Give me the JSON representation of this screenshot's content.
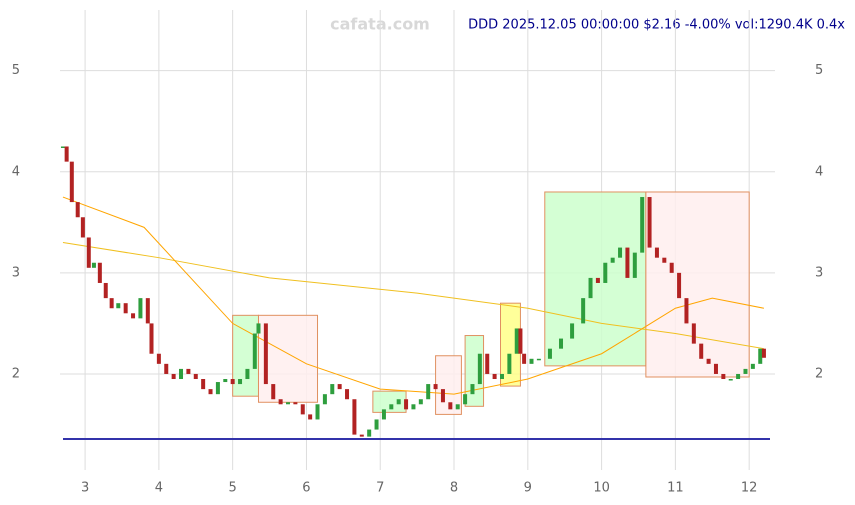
{
  "chart_data": {
    "type": "candlestick",
    "title": "DDD 2025.12.05 00:00:00 $2.16 -4.00% vol:1290.4K 0.4x",
    "watermark": "cafata.com",
    "xlim": [
      2.66,
      12.35
    ],
    "ylim": [
      1.05,
      5.6
    ],
    "xticks": [
      3,
      4,
      5,
      6,
      7,
      8,
      9,
      10,
      11,
      12
    ],
    "yticks": [
      2,
      3,
      4,
      5
    ],
    "grid": true,
    "up_color": "#2e9e3e",
    "down_color": "#b22222",
    "x": [
      2.7,
      2.75,
      2.82,
      2.9,
      2.97,
      3.05,
      3.12,
      3.2,
      3.28,
      3.36,
      3.45,
      3.55,
      3.65,
      3.75,
      3.85,
      3.9,
      4.0,
      4.1,
      4.2,
      4.3,
      4.4,
      4.5,
      4.6,
      4.7,
      4.8,
      4.9,
      5.0,
      5.1,
      5.2,
      5.3,
      5.35,
      5.45,
      5.55,
      5.65,
      5.75,
      5.85,
      5.95,
      6.05,
      6.15,
      6.25,
      6.35,
      6.45,
      6.55,
      6.65,
      6.75,
      6.85,
      6.95,
      7.05,
      7.15,
      7.25,
      7.35,
      7.45,
      7.55,
      7.65,
      7.75,
      7.85,
      7.95,
      8.05,
      8.15,
      8.25,
      8.35,
      8.45,
      8.55,
      8.65,
      8.75,
      8.85,
      8.9,
      8.95,
      9.05,
      9.15,
      9.3,
      9.45,
      9.6,
      9.75,
      9.85,
      9.95,
      10.05,
      10.15,
      10.25,
      10.35,
      10.45,
      10.55,
      10.65,
      10.75,
      10.85,
      10.95,
      11.05,
      11.15,
      11.25,
      11.35,
      11.45,
      11.55,
      11.65,
      11.75,
      11.85,
      11.95,
      12.05,
      12.15,
      12.2
    ],
    "values": [
      4.25,
      4.1,
      3.7,
      3.55,
      3.35,
      3.05,
      3.1,
      2.9,
      2.75,
      2.65,
      2.7,
      2.6,
      2.55,
      2.75,
      2.5,
      2.2,
      2.1,
      2.0,
      1.95,
      2.05,
      2.0,
      1.95,
      1.85,
      1.8,
      1.92,
      1.95,
      1.9,
      1.95,
      2.05,
      2.4,
      2.5,
      1.9,
      1.75,
      1.7,
      1.72,
      1.7,
      1.6,
      1.55,
      1.7,
      1.8,
      1.9,
      1.85,
      1.75,
      1.4,
      1.38,
      1.45,
      1.55,
      1.65,
      1.7,
      1.75,
      1.65,
      1.7,
      1.75,
      1.9,
      1.85,
      1.72,
      1.65,
      1.7,
      1.8,
      1.9,
      2.2,
      2.0,
      1.95,
      2.0,
      2.2,
      2.45,
      2.2,
      2.1,
      2.15,
      2.15,
      2.25,
      2.35,
      2.5,
      2.75,
      2.95,
      2.9,
      3.1,
      3.15,
      3.25,
      2.95,
      3.2,
      3.75,
      3.25,
      3.15,
      3.1,
      3.0,
      2.75,
      2.5,
      2.3,
      2.15,
      2.1,
      2.0,
      1.95,
      1.95,
      2.0,
      2.05,
      2.1,
      2.25,
      2.16
    ],
    "lines": [
      {
        "color": "#f0c020",
        "x": [
          2.7,
          4.0,
          5.5,
          7.5,
          9.0,
          10.0,
          11.0,
          12.2
        ],
        "values": [
          3.3,
          3.15,
          2.95,
          2.8,
          2.65,
          2.5,
          2.4,
          2.25
        ]
      },
      {
        "color": "#ffa500",
        "x": [
          2.7,
          3.8,
          5.0,
          6.0,
          7.0,
          8.0,
          9.0,
          10.0,
          11.0,
          11.5,
          12.2
        ],
        "values": [
          3.75,
          3.45,
          2.5,
          2.1,
          1.85,
          1.8,
          1.95,
          2.2,
          2.65,
          2.75,
          2.65
        ]
      }
    ],
    "boxes": [
      {
        "x": [
          5.0,
          5.35
        ],
        "y": [
          1.78,
          2.58
        ],
        "color": "#ccffcc"
      },
      {
        "x": [
          5.35,
          6.15
        ],
        "y": [
          1.72,
          2.58
        ],
        "color": "#ffeeee"
      },
      {
        "x": [
          6.9,
          7.35
        ],
        "y": [
          1.62,
          1.83
        ],
        "color": "#ccffcc"
      },
      {
        "x": [
          7.75,
          8.1
        ],
        "y": [
          1.6,
          2.18
        ],
        "color": "#ffeeee"
      },
      {
        "x": [
          8.15,
          8.4
        ],
        "y": [
          1.68,
          2.38
        ],
        "color": "#ccffcc"
      },
      {
        "x": [
          8.63,
          8.9
        ],
        "y": [
          1.88,
          2.7
        ],
        "color": "#ffff88"
      },
      {
        "x": [
          9.23,
          10.6
        ],
        "y": [
          2.08,
          3.8
        ],
        "color": "#ccffcc"
      },
      {
        "x": [
          10.6,
          12.0
        ],
        "y": [
          1.97,
          3.8
        ],
        "color": "#ffeeee"
      }
    ]
  }
}
